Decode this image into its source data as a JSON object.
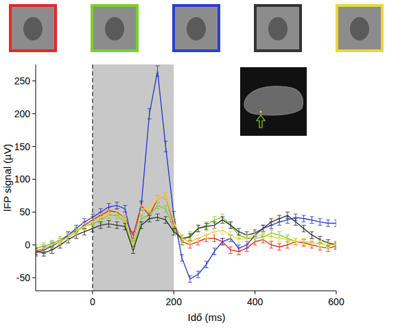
{
  "chart_data": {
    "type": "line",
    "x_label": "Idő (ms)",
    "y_label": "lFP signal (µV)",
    "x": [
      -140,
      -120,
      -100,
      -80,
      -60,
      -40,
      -20,
      0,
      20,
      40,
      60,
      80,
      100,
      120,
      140,
      160,
      180,
      200,
      220,
      240,
      260,
      280,
      300,
      320,
      340,
      360,
      380,
      400,
      420,
      440,
      460,
      480,
      500,
      520,
      540,
      560,
      580,
      600
    ],
    "xlim": [
      -140,
      600
    ],
    "xticks": [
      0,
      200,
      400,
      600
    ],
    "ylim": [
      -70,
      275
    ],
    "yticks": [
      -50,
      0,
      50,
      100,
      150,
      200,
      250
    ],
    "stimulus_window": [
      0,
      200
    ],
    "stimulus_onset": 0,
    "series": [
      {
        "color": "#e8262a",
        "values": [
          -10,
          -5,
          0,
          5,
          12,
          20,
          30,
          38,
          45,
          52,
          50,
          40,
          15,
          60,
          45,
          70,
          75,
          30,
          5,
          0,
          5,
          10,
          10,
          5,
          -8,
          -10,
          -5,
          5,
          8,
          0,
          -3,
          0,
          5,
          3,
          0,
          -3,
          -5,
          -2
        ],
        "errors": [
          5,
          5,
          5,
          5,
          5,
          5,
          5,
          5,
          5,
          5,
          5,
          5,
          5,
          5,
          5,
          5,
          5,
          5,
          5,
          5,
          5,
          5,
          5,
          5,
          5,
          5,
          5,
          5,
          5,
          5,
          5,
          5,
          5,
          5,
          5,
          5,
          5,
          5
        ]
      },
      {
        "color": "#7ccf2a",
        "values": [
          -5,
          -2,
          2,
          8,
          15,
          22,
          28,
          32,
          38,
          45,
          45,
          35,
          -8,
          40,
          45,
          60,
          55,
          25,
          5,
          15,
          25,
          30,
          38,
          42,
          30,
          15,
          10,
          10,
          12,
          18,
          15,
          10,
          5,
          5,
          3,
          2,
          0,
          0
        ],
        "errors": [
          5,
          5,
          5,
          5,
          5,
          5,
          5,
          5,
          5,
          5,
          5,
          5,
          5,
          5,
          5,
          5,
          5,
          5,
          5,
          5,
          5,
          5,
          5,
          5,
          5,
          5,
          5,
          5,
          5,
          5,
          5,
          5,
          5,
          5,
          5,
          5,
          5,
          5
        ]
      },
      {
        "color": "#2b3fcf",
        "values": [
          -12,
          -8,
          -2,
          5,
          15,
          25,
          35,
          42,
          50,
          58,
          60,
          55,
          0,
          60,
          200,
          265,
          150,
          45,
          -20,
          -52,
          -45,
          -30,
          -10,
          5,
          10,
          -5,
          0,
          15,
          25,
          30,
          35,
          38,
          42,
          40,
          38,
          35,
          33,
          33
        ],
        "errors": [
          5,
          5,
          5,
          5,
          5,
          5,
          5,
          5,
          5,
          5,
          5,
          5,
          6,
          7,
          8,
          8,
          8,
          6,
          5,
          5,
          5,
          5,
          5,
          5,
          5,
          5,
          5,
          5,
          5,
          5,
          5,
          5,
          5,
          5,
          5,
          5,
          5,
          5
        ]
      },
      {
        "color": "#333333",
        "values": [
          -10,
          -12,
          -8,
          0,
          8,
          15,
          20,
          25,
          30,
          32,
          30,
          28,
          -8,
          30,
          40,
          42,
          38,
          20,
          10,
          12,
          25,
          28,
          30,
          38,
          30,
          20,
          15,
          18,
          25,
          35,
          40,
          45,
          35,
          25,
          15,
          8,
          3,
          0
        ],
        "errors": [
          5,
          5,
          5,
          5,
          5,
          5,
          5,
          5,
          5,
          5,
          5,
          5,
          5,
          5,
          5,
          5,
          5,
          5,
          5,
          5,
          5,
          5,
          5,
          5,
          5,
          5,
          5,
          5,
          5,
          5,
          5,
          5,
          5,
          5,
          5,
          5,
          5,
          5
        ]
      },
      {
        "color": "#e8d83a",
        "values": [
          -8,
          -5,
          0,
          5,
          12,
          20,
          28,
          35,
          42,
          48,
          48,
          40,
          0,
          55,
          55,
          70,
          75,
          35,
          10,
          5,
          10,
          15,
          20,
          22,
          15,
          8,
          10,
          15,
          15,
          12,
          10,
          8,
          5,
          5,
          3,
          2,
          0,
          0
        ],
        "errors": [
          5,
          5,
          5,
          5,
          5,
          5,
          5,
          5,
          5,
          5,
          5,
          5,
          5,
          5,
          5,
          5,
          5,
          5,
          5,
          5,
          5,
          5,
          5,
          5,
          5,
          5,
          5,
          5,
          5,
          5,
          5,
          5,
          5,
          5,
          5,
          5,
          5,
          5
        ]
      }
    ]
  }
}
